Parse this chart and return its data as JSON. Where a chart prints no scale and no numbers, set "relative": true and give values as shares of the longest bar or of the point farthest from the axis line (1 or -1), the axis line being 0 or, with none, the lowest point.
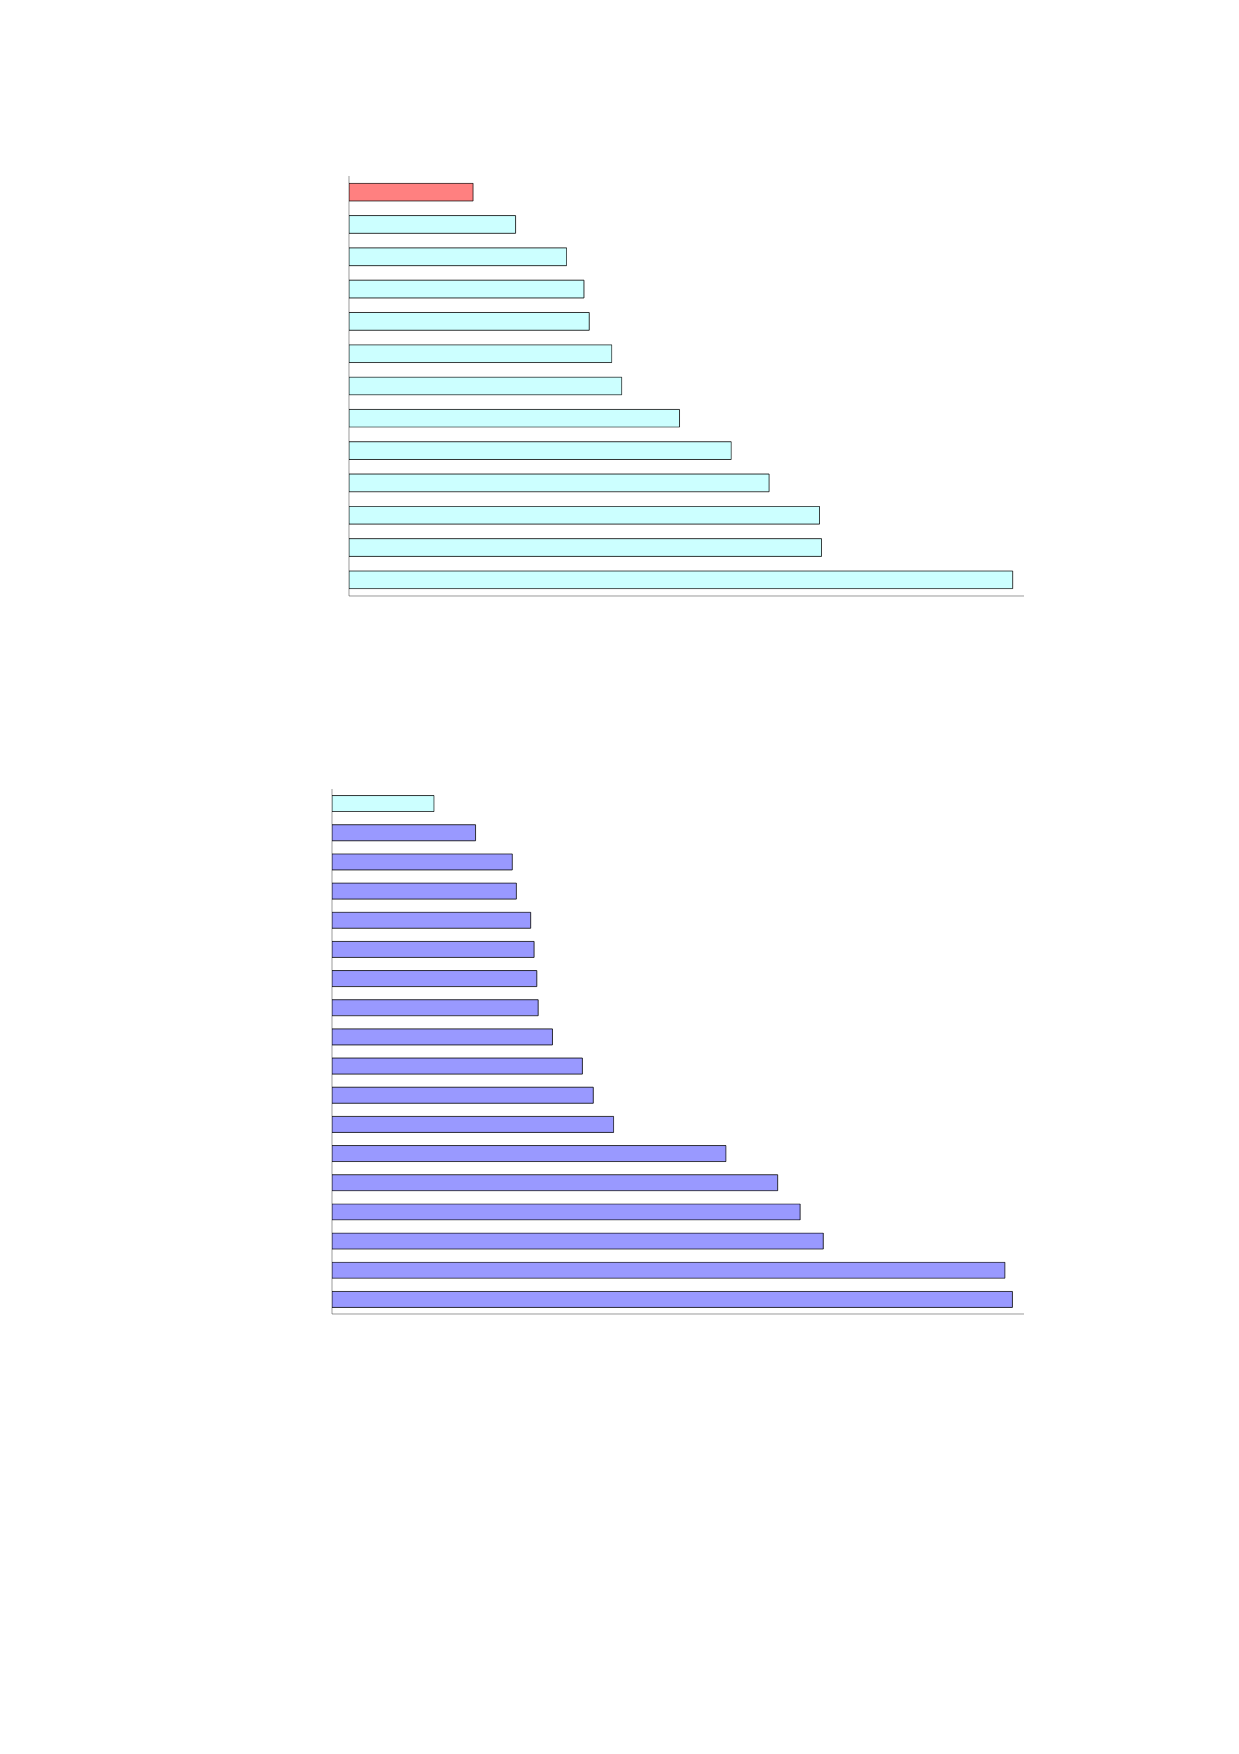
{
  "chart_data": [
    {
      "type": "bar",
      "orientation": "horizontal",
      "relative": true,
      "categories": [
        null,
        null,
        null,
        null,
        null,
        null,
        null,
        null,
        null,
        null,
        null,
        null,
        null
      ],
      "values": [
        0.187,
        0.251,
        0.328,
        0.354,
        0.362,
        0.396,
        0.411,
        0.498,
        0.576,
        0.633,
        0.709,
        0.712,
        1
      ],
      "colors": [
        "#ff8080",
        "#ccffff",
        "#ccffff",
        "#ccffff",
        "#ccffff",
        "#ccffff",
        "#ccffff",
        "#ccffff",
        "#ccffff",
        "#ccffff",
        "#ccffff",
        "#ccffff",
        "#ccffff"
      ]
    },
    {
      "type": "bar",
      "orientation": "horizontal",
      "relative": true,
      "categories": [
        null,
        null,
        null,
        null,
        null,
        null,
        null,
        null,
        null,
        null,
        null,
        null,
        null,
        null,
        null,
        null,
        null,
        null
      ],
      "values": [
        0.15,
        0.211,
        0.265,
        0.271,
        0.292,
        0.297,
        0.301,
        0.303,
        0.324,
        0.368,
        0.384,
        0.414,
        0.579,
        0.655,
        0.688,
        0.722,
        0.989,
        1
      ],
      "colors": [
        "#ccffff",
        "#9999ff",
        "#9999ff",
        "#9999ff",
        "#9999ff",
        "#9999ff",
        "#9999ff",
        "#9999ff",
        "#9999ff",
        "#9999ff",
        "#9999ff",
        "#9999ff",
        "#9999ff",
        "#9999ff",
        "#9999ff",
        "#9999ff",
        "#9999ff",
        "#9999ff"
      ]
    }
  ]
}
